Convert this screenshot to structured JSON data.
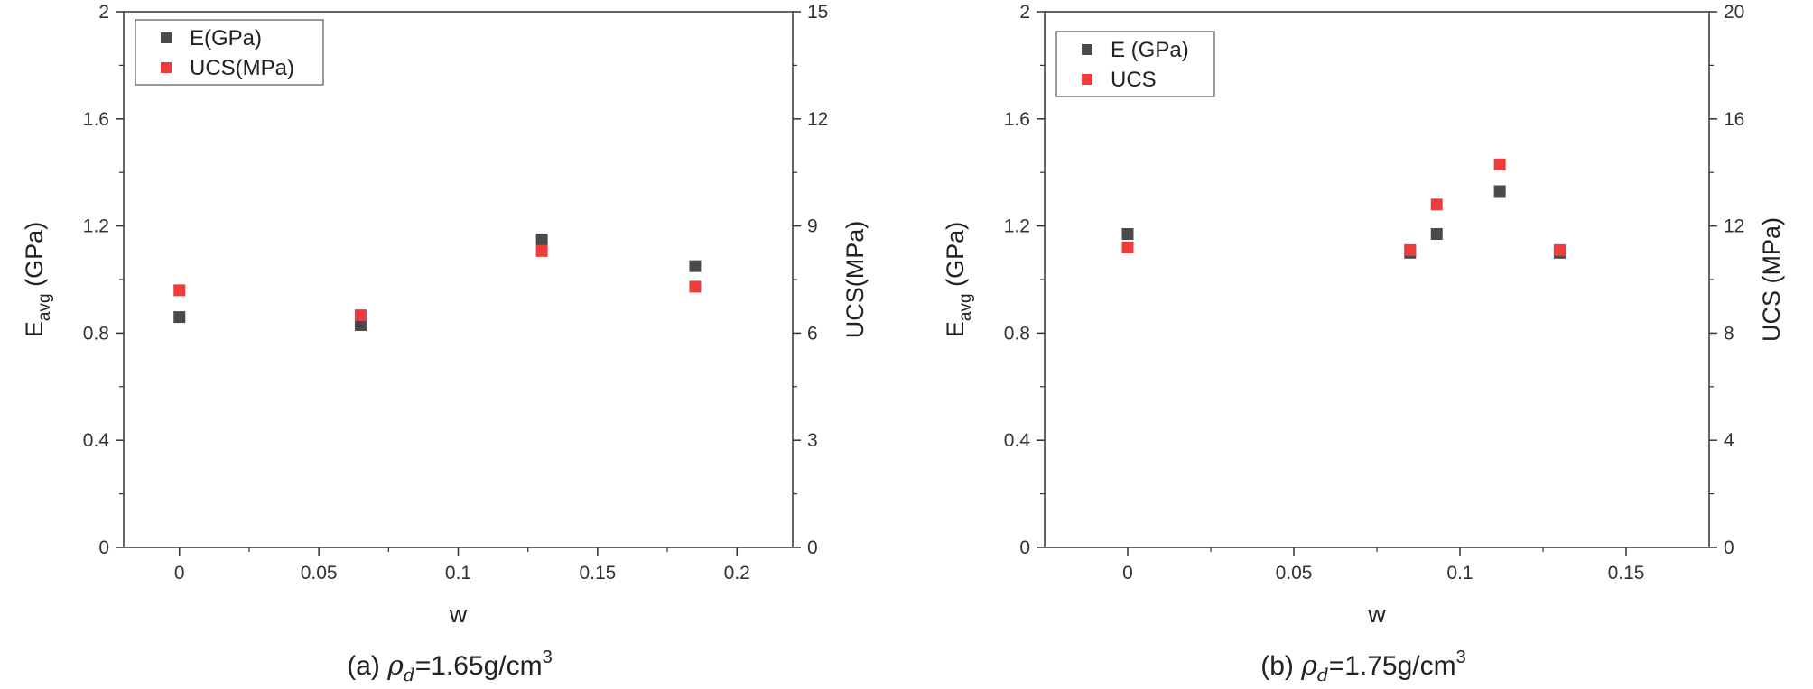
{
  "colors": {
    "E_marker": "#4a4a4a",
    "UCS_marker": "#ee3b3b",
    "axis": "#333333"
  },
  "chart_data": [
    {
      "type": "scatter",
      "xlabel": "w",
      "ylabel_main": "E",
      "ylabel_sub": "avg",
      "ylabel_unit": " (GPa)",
      "y2label": "UCS(MPa)",
      "xlim": [
        -0.02,
        0.22
      ],
      "ylim": [
        0,
        2
      ],
      "y2lim": [
        0,
        15
      ],
      "xticks": [
        0,
        0.05,
        0.1,
        0.15,
        0.2
      ],
      "xtick_labels": [
        "0",
        "0.05",
        "0.1",
        "0.15",
        "0.2"
      ],
      "yticks": [
        0,
        0.4,
        0.8,
        1.2,
        1.6,
        2
      ],
      "ytick_labels": [
        "0",
        "0.4",
        "0.8",
        "1.2",
        "1.6",
        "2"
      ],
      "y2ticks": [
        0,
        3,
        6,
        9,
        12,
        15
      ],
      "y2tick_labels": [
        "0",
        "3",
        "6",
        "9",
        "12",
        "15"
      ],
      "legend_position": "top-left",
      "caption_prefix": "(a)",
      "caption_symbol": "ρ",
      "caption_symbol_sub": "d",
      "caption_value": "=1.65g/cm",
      "caption_sup": "3",
      "series": [
        {
          "name": "E(GPa)",
          "axis": "left",
          "color": "#4a4a4a",
          "x": [
            0,
            0.065,
            0.13,
            0.185
          ],
          "y": [
            0.86,
            0.83,
            1.15,
            1.05
          ]
        },
        {
          "name": "UCS(MPa)",
          "axis": "right",
          "color": "#ee3b3b",
          "x": [
            0,
            0.065,
            0.13,
            0.185
          ],
          "y": [
            7.2,
            6.5,
            8.3,
            7.3
          ]
        }
      ]
    },
    {
      "type": "scatter",
      "xlabel": "w",
      "ylabel_main": "E",
      "ylabel_sub": "avg",
      "ylabel_unit": " (GPa)",
      "y2label": "UCS (MPa)",
      "xlim": [
        -0.025,
        0.175
      ],
      "ylim": [
        0,
        2
      ],
      "y2lim": [
        0,
        20
      ],
      "xticks": [
        0,
        0.05,
        0.1,
        0.15
      ],
      "xtick_labels": [
        "0",
        "0.05",
        "0.1",
        "0.15"
      ],
      "yticks": [
        0,
        0.4,
        0.8,
        1.2,
        1.6,
        2
      ],
      "ytick_labels": [
        "0",
        "0.4",
        "0.8",
        "1.2",
        "1.6",
        "2"
      ],
      "y2ticks": [
        0,
        4,
        8,
        12,
        16,
        20
      ],
      "y2tick_labels": [
        "0",
        "4",
        "8",
        "12",
        "16",
        "20"
      ],
      "legend_position": "top-left",
      "caption_prefix": "(b)",
      "caption_symbol": "ρ",
      "caption_symbol_sub": "d",
      "caption_value": "=1.75g/cm",
      "caption_sup": "3",
      "series": [
        {
          "name": "E (GPa)",
          "axis": "left",
          "color": "#4a4a4a",
          "x": [
            0,
            0.085,
            0.093,
            0.112,
            0.13
          ],
          "y": [
            1.17,
            1.1,
            1.17,
            1.33,
            1.1
          ]
        },
        {
          "name": "UCS",
          "axis": "right",
          "color": "#ee3b3b",
          "x": [
            0,
            0.085,
            0.093,
            0.112,
            0.13
          ],
          "y": [
            11.2,
            11.1,
            12.8,
            14.3,
            11.1
          ]
        }
      ]
    }
  ]
}
